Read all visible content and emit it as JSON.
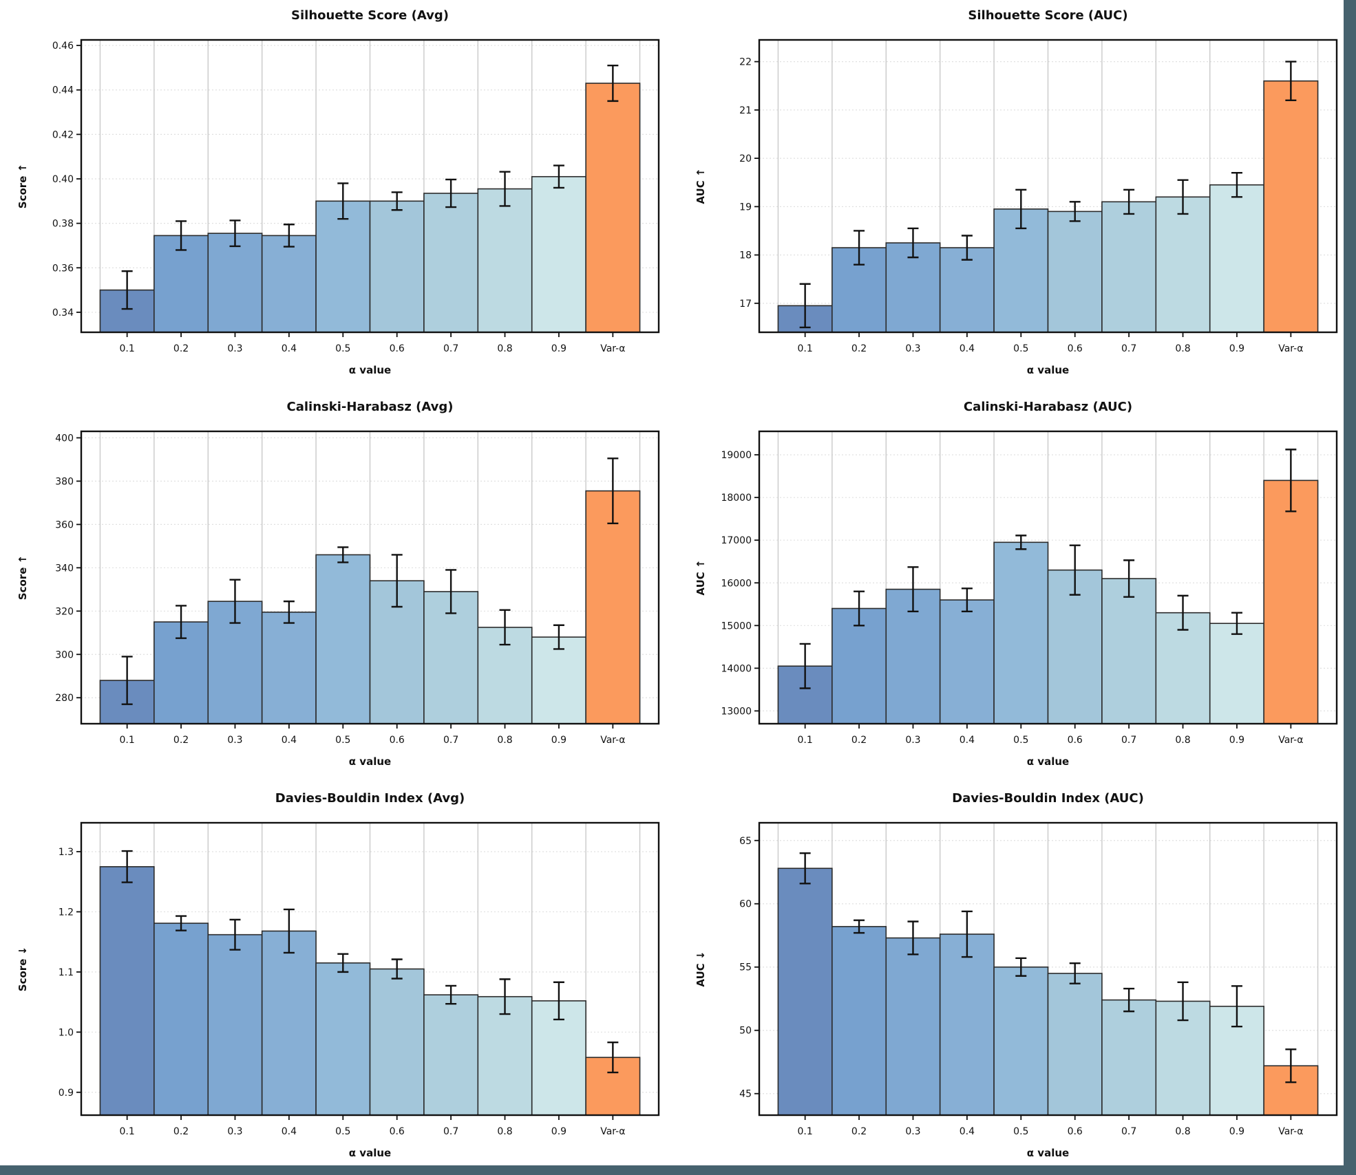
{
  "palette": {
    "bar_colors": [
      "#6a8cbe",
      "#77a1cf",
      "#7fa8d2",
      "#87afd5",
      "#92bad9",
      "#a3c6da",
      "#aecfdd",
      "#bddae2",
      "#cde6e9"
    ],
    "highlight_color": "#fb9a5d",
    "bar_edge": "#2b2b2b",
    "error_color": "#111111",
    "grid_vertical": "#c9c9c9",
    "grid_horizontal": "#e0e0e0",
    "frame_color": "#111111",
    "side_strip_color": "#46626e",
    "background": "#ffffff"
  },
  "chart_data": [
    {
      "type": "bar",
      "title": "Silhouette Score (Avg)",
      "ylabel": "Score ↑",
      "xlabel": "α value",
      "categories": [
        "0.1",
        "0.2",
        "0.3",
        "0.4",
        "0.5",
        "0.6",
        "0.7",
        "0.8",
        "0.9",
        "Var-α"
      ],
      "values": [
        0.35,
        0.3745,
        0.3755,
        0.3745,
        0.39,
        0.39,
        0.3935,
        0.3955,
        0.401,
        0.443
      ],
      "errors": [
        0.0085,
        0.0065,
        0.0058,
        0.005,
        0.008,
        0.004,
        0.0062,
        0.0077,
        0.005,
        0.008
      ],
      "yticks": [
        0.34,
        0.36,
        0.38,
        0.4,
        0.42,
        0.44,
        0.46
      ],
      "ytick_labels": [
        "0.34",
        "0.36",
        "0.38",
        "0.40",
        "0.42",
        "0.44",
        "0.46"
      ],
      "ylim": [
        0.331,
        0.4625
      ],
      "grid": true,
      "legend": "none"
    },
    {
      "type": "bar",
      "title": "Silhouette Score (AUC)",
      "ylabel": "AUC ↑",
      "xlabel": "α value",
      "categories": [
        "0.1",
        "0.2",
        "0.3",
        "0.4",
        "0.5",
        "0.6",
        "0.7",
        "0.8",
        "0.9",
        "Var-α"
      ],
      "values": [
        16.95,
        18.15,
        18.25,
        18.15,
        18.95,
        18.9,
        19.1,
        19.2,
        19.45,
        21.6
      ],
      "errors": [
        0.45,
        0.35,
        0.3,
        0.25,
        0.4,
        0.2,
        0.25,
        0.35,
        0.25,
        0.4
      ],
      "yticks": [
        17,
        18,
        19,
        20,
        21,
        22
      ],
      "ytick_labels": [
        "17",
        "18",
        "19",
        "20",
        "21",
        "22"
      ],
      "ylim": [
        16.4,
        22.45
      ],
      "grid": true,
      "legend": "none"
    },
    {
      "type": "bar",
      "title": "Calinski-Harabasz (Avg)",
      "ylabel": "Score ↑",
      "xlabel": "α value",
      "categories": [
        "0.1",
        "0.2",
        "0.3",
        "0.4",
        "0.5",
        "0.6",
        "0.7",
        "0.8",
        "0.9",
        "Var-α"
      ],
      "values": [
        288,
        315,
        324.5,
        319.5,
        346,
        334,
        329,
        312.5,
        308,
        375.5
      ],
      "errors": [
        11,
        7.5,
        10,
        5,
        3.5,
        12,
        10,
        8,
        5.5,
        15
      ],
      "yticks": [
        280,
        300,
        320,
        340,
        360,
        380,
        400
      ],
      "ytick_labels": [
        "280",
        "300",
        "320",
        "340",
        "360",
        "380",
        "400"
      ],
      "ylim": [
        268,
        403
      ],
      "grid": true,
      "legend": "none"
    },
    {
      "type": "bar",
      "title": "Calinski-Harabasz (AUC)",
      "ylabel": "AUC ↑",
      "xlabel": "α value",
      "categories": [
        "0.1",
        "0.2",
        "0.3",
        "0.4",
        "0.5",
        "0.6",
        "0.7",
        "0.8",
        "0.9",
        "Var-α"
      ],
      "values": [
        14050,
        15400,
        15850,
        15600,
        16950,
        16300,
        16100,
        15300,
        15050,
        18400
      ],
      "errors": [
        520,
        400,
        520,
        270,
        160,
        580,
        430,
        400,
        250,
        725
      ],
      "yticks": [
        13000,
        14000,
        15000,
        16000,
        17000,
        18000,
        19000
      ],
      "ytick_labels": [
        "13000",
        "14000",
        "15000",
        "16000",
        "17000",
        "18000",
        "19000"
      ],
      "ylim": [
        12700,
        19550
      ],
      "grid": true,
      "legend": "none"
    },
    {
      "type": "bar",
      "title": "Davies-Bouldin Index (Avg)",
      "ylabel": "Score ↓",
      "xlabel": "α value",
      "categories": [
        "0.1",
        "0.2",
        "0.3",
        "0.4",
        "0.5",
        "0.6",
        "0.7",
        "0.8",
        "0.9",
        "Var-α"
      ],
      "values": [
        1.275,
        1.181,
        1.162,
        1.168,
        1.115,
        1.105,
        1.062,
        1.059,
        1.052,
        0.958
      ],
      "errors": [
        0.026,
        0.012,
        0.025,
        0.036,
        0.015,
        0.016,
        0.015,
        0.029,
        0.031,
        0.025
      ],
      "yticks": [
        0.9,
        1.0,
        1.1,
        1.2,
        1.3
      ],
      "ytick_labels": [
        "0.9",
        "1.0",
        "1.1",
        "1.2",
        "1.3"
      ],
      "ylim": [
        0.862,
        1.348
      ],
      "grid": true,
      "legend": "none"
    },
    {
      "type": "bar",
      "title": "Davies-Bouldin Index (AUC)",
      "ylabel": "AUC ↓",
      "xlabel": "α value",
      "categories": [
        "0.1",
        "0.2",
        "0.3",
        "0.4",
        "0.5",
        "0.6",
        "0.7",
        "0.8",
        "0.9",
        "Var-α"
      ],
      "values": [
        62.8,
        58.2,
        57.3,
        57.6,
        55.0,
        54.5,
        52.4,
        52.3,
        51.9,
        47.2
      ],
      "errors": [
        1.2,
        0.5,
        1.3,
        1.8,
        0.7,
        0.8,
        0.9,
        1.5,
        1.6,
        1.3
      ],
      "yticks": [
        45,
        50,
        55,
        60,
        65
      ],
      "ytick_labels": [
        "45",
        "50",
        "55",
        "60",
        "65"
      ],
      "ylim": [
        43.3,
        66.4
      ],
      "grid": true,
      "legend": "none"
    }
  ]
}
